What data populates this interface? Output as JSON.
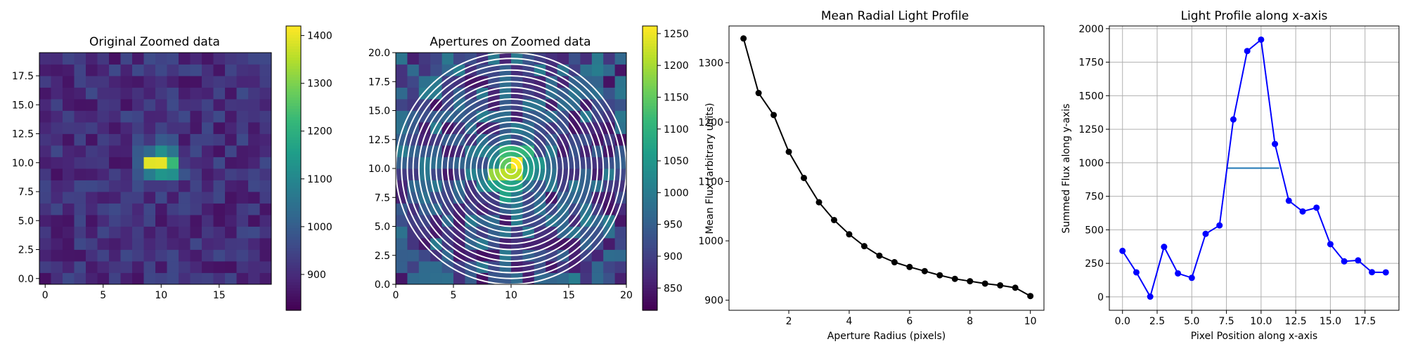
{
  "charts": {
    "panel1": {
      "type": "heatmap",
      "title": "Original Zoomed data",
      "xticks": [
        "0",
        "5",
        "10",
        "15"
      ],
      "yticks": [
        "0.0",
        "2.5",
        "5.0",
        "7.5",
        "10.0",
        "12.5",
        "15.0",
        "17.5"
      ],
      "colorbar_ticks": [
        "900",
        "1000",
        "1100",
        "1200",
        "1300",
        "1400"
      ],
      "colorbar_range": [
        825,
        1420
      ],
      "colormap": "viridis",
      "peak_pixel": [
        10,
        10
      ],
      "peak_value": 1400
    },
    "panel2": {
      "type": "heatmap",
      "title": "Apertures on Zoomed data",
      "xticks": [
        "0",
        "5",
        "10",
        "15",
        "20"
      ],
      "yticks": [
        "0.0",
        "2.5",
        "5.0",
        "7.5",
        "10.0",
        "12.5",
        "15.0",
        "17.5",
        "20.0"
      ],
      "colorbar_ticks": [
        "850",
        "900",
        "950",
        "1000",
        "1050",
        "1100",
        "1150",
        "1200",
        "1250"
      ],
      "colorbar_range": [
        815,
        1262
      ],
      "colormap": "viridis",
      "aperture_center": [
        10,
        10
      ],
      "aperture_radii": [
        0.5,
        1,
        1.5,
        2,
        2.5,
        3,
        3.5,
        4,
        4.5,
        5,
        5.5,
        6,
        6.5,
        7,
        7.5,
        8,
        8.5,
        9,
        9.5,
        10
      ],
      "aperture_color": "#ffffff"
    },
    "panel3": {
      "type": "line",
      "title": "Mean Radial Light Profile",
      "xlabel": "Aperture Radius (pixels)",
      "ylabel": "Mean Flux (arbitrary units)",
      "xticks": [
        "2",
        "4",
        "6",
        "8",
        "10"
      ],
      "yticks": [
        "900",
        "1000",
        "1100",
        "1200",
        "1300"
      ],
      "xlim": [
        0.02,
        10.45
      ],
      "ylim": [
        883,
        1362
      ],
      "color": "#000000",
      "x": [
        0.5,
        1,
        1.5,
        2,
        2.5,
        3,
        3.5,
        4,
        4.5,
        5,
        5.5,
        6,
        6.5,
        7,
        7.5,
        8,
        8.5,
        9,
        9.5,
        10
      ],
      "y": [
        1341,
        1249,
        1212,
        1150,
        1106,
        1065,
        1035,
        1011,
        991,
        975,
        964,
        956,
        949,
        942,
        936,
        932,
        928,
        925,
        921,
        907
      ]
    },
    "panel4": {
      "type": "line",
      "title": "Light Profile along x-axis",
      "xlabel": "Pixel Position along x-axis",
      "ylabel": "Summed Flux along y-axis",
      "xticks": [
        "0.0",
        "2.5",
        "5.0",
        "7.5",
        "10.0",
        "12.5",
        "15.0",
        "17.5"
      ],
      "yticks": [
        "0",
        "250",
        "500",
        "750",
        "1000",
        "1250",
        "1500",
        "1750",
        "2000"
      ],
      "xlim": [
        -0.95,
        19.95
      ],
      "ylim": [
        -100,
        2020
      ],
      "grid": true,
      "color": "#0000ff",
      "x": [
        0,
        1,
        2,
        3,
        4,
        5,
        6,
        7,
        8,
        9,
        10,
        11,
        12,
        13,
        14,
        15,
        16,
        17,
        18,
        19
      ],
      "y": [
        343,
        183,
        2,
        373,
        175,
        142,
        470,
        533,
        1323,
        1833,
        1918,
        1140,
        717,
        637,
        665,
        393,
        265,
        272,
        184,
        183
      ],
      "half_max_line": {
        "x": [
          7.5,
          11.3
        ],
        "y": 960,
        "color": "#1f77b4"
      }
    }
  }
}
